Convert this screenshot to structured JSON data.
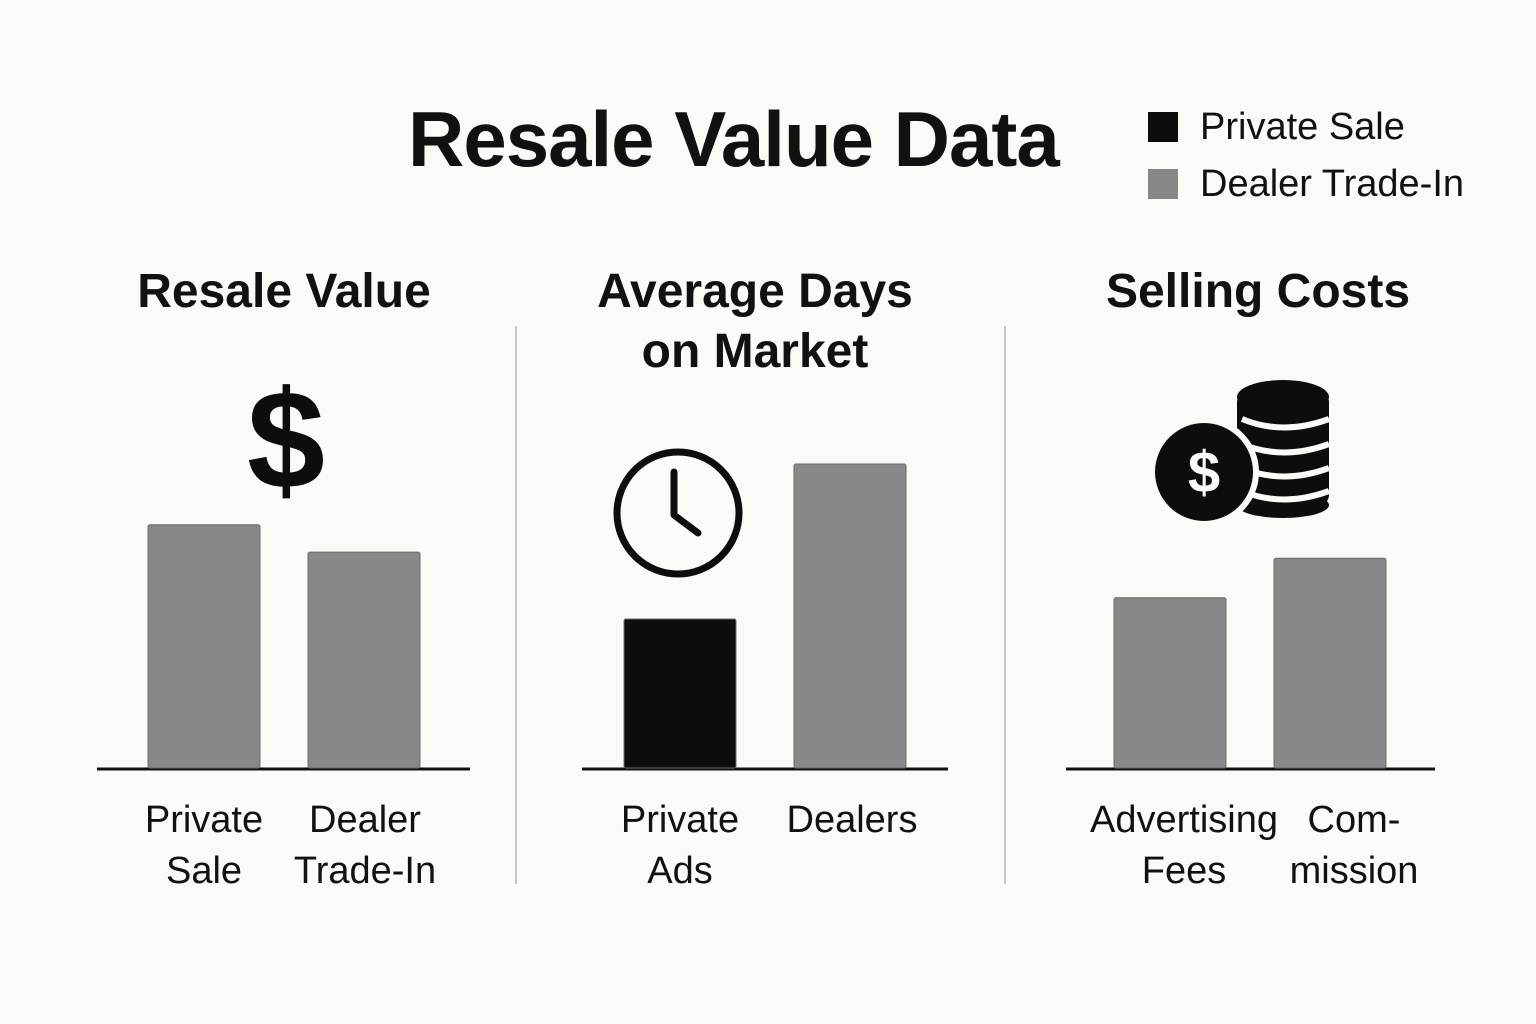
{
  "title": "Resale Value Data",
  "legend": [
    {
      "label": "Private Sale",
      "color": "#0d0d0d"
    },
    {
      "label": "Dealer Trade-In",
      "color": "#888888"
    }
  ],
  "panels": [
    {
      "title": "Resale Value",
      "icon": "dollar-sign-icon",
      "icon_text": "$"
    },
    {
      "title": "Average Days\non Market",
      "icon": "clock-icon"
    },
    {
      "title": "Selling Costs",
      "icon": "coins-dollar-icon",
      "icon_text": "$"
    }
  ],
  "chart_data": [
    {
      "type": "bar",
      "title": "Resale Value",
      "categories": [
        "Private\nSale",
        "Dealer\nTrade-In"
      ],
      "values": [
        0.8,
        0.71
      ],
      "colors": [
        "#888888",
        "#888888"
      ],
      "ylim": [
        0,
        1
      ]
    },
    {
      "type": "bar",
      "title": "Average Days on Market",
      "categories": [
        "Private\nAds",
        "Dealers"
      ],
      "values": [
        0.49,
        1.0
      ],
      "colors": [
        "#0d0d0d",
        "#888888"
      ],
      "ylim": [
        0,
        1
      ]
    },
    {
      "type": "bar",
      "title": "Selling Costs",
      "categories": [
        "Advertising\nFees",
        "Com-\nmission"
      ],
      "values": [
        0.56,
        0.69
      ],
      "colors": [
        "#888888",
        "#888888"
      ],
      "ylim": [
        0,
        1
      ]
    }
  ]
}
